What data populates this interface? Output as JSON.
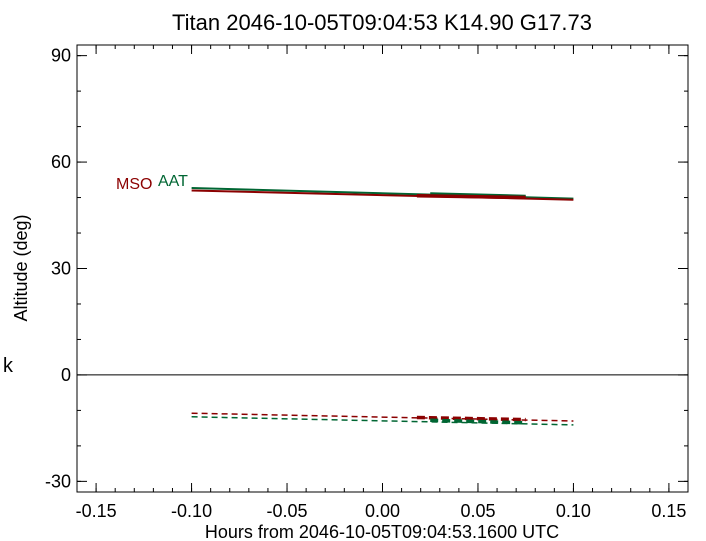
{
  "side_mark": "k",
  "chart_data": {
    "type": "line",
    "title": "Titan 2046-10-05T09:04:53  K14.90  G17.73",
    "xlabel": "Hours from 2046-10-05T09:04:53.1600 UTC",
    "ylabel": "Altitude (deg)",
    "xlim": [
      -0.16,
      0.16
    ],
    "ylim": [
      -33,
      93
    ],
    "xticks": [
      -0.15,
      -0.1,
      -0.05,
      0.0,
      0.05,
      0.1,
      0.15
    ],
    "xtick_labels": [
      "-0.15",
      "-0.10",
      "-0.05",
      "0.00",
      "0.05",
      "0.10",
      "0.15"
    ],
    "yticks": [
      -30,
      0,
      30,
      60,
      90
    ],
    "ytick_labels": [
      "-30",
      "0",
      "30",
      "60",
      "90"
    ],
    "minor_x_step": 0.01,
    "minor_y_step": 10,
    "zero_line": true,
    "grid": false,
    "legend": [
      {
        "label": "MSO",
        "color": "#8b0000"
      },
      {
        "label": "AAT",
        "color": "#006633"
      }
    ],
    "series": [
      {
        "name": "AAT",
        "style": "solid",
        "color": "#006633",
        "width": 2,
        "x": [
          -0.1,
          0.1
        ],
        "y": [
          52.7,
          49.7
        ]
      },
      {
        "name": "AAT",
        "style": "solid",
        "color": "#006633",
        "width": 3.5,
        "x": [
          0.025,
          0.075
        ],
        "y": [
          51.0,
          50.3
        ]
      },
      {
        "name": "MSO",
        "style": "solid",
        "color": "#8b0000",
        "width": 2,
        "x": [
          -0.1,
          0.1
        ],
        "y": [
          52.0,
          49.4
        ]
      },
      {
        "name": "MSO",
        "style": "solid",
        "color": "#8b0000",
        "width": 3.5,
        "x": [
          0.018,
          0.075
        ],
        "y": [
          50.5,
          50.0
        ]
      },
      {
        "name": "MSO",
        "style": "dashed",
        "color": "#8b0000",
        "width": 1.5,
        "x": [
          -0.1,
          0.1
        ],
        "y": [
          -10.8,
          -13.0
        ]
      },
      {
        "name": "MSO",
        "style": "dashed",
        "color": "#8b0000",
        "width": 3.5,
        "x": [
          0.018,
          0.075
        ],
        "y": [
          -12.0,
          -12.6
        ]
      },
      {
        "name": "AAT",
        "style": "dashed",
        "color": "#006633",
        "width": 1.5,
        "x": [
          -0.1,
          0.1
        ],
        "y": [
          -11.8,
          -14.1
        ]
      },
      {
        "name": "AAT",
        "style": "dashed",
        "color": "#006633",
        "width": 3.5,
        "x": [
          0.025,
          0.075
        ],
        "y": [
          -12.8,
          -13.5
        ]
      }
    ]
  }
}
